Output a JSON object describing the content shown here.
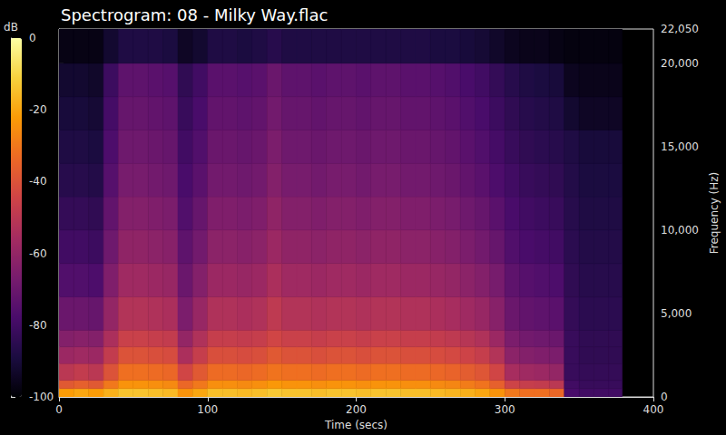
{
  "chart_data": {
    "type": "heatmap",
    "title": "Spectrogram: 08 - Milky Way.flac",
    "x_label": "Time (secs)",
    "y_label": "Frequency (Hz)",
    "xlim": [
      0,
      400
    ],
    "xticks": [
      0,
      100,
      200,
      300,
      400
    ],
    "ylim": [
      0,
      22050
    ],
    "yticks": [
      0,
      5000,
      10000,
      15000,
      20000
    ],
    "time_edges": [
      0,
      10,
      20,
      30,
      40,
      50,
      60,
      70,
      80,
      90,
      100,
      110,
      120,
      130,
      140,
      150,
      160,
      170,
      180,
      190,
      200,
      210,
      220,
      230,
      240,
      250,
      260,
      270,
      280,
      290,
      300,
      310,
      320,
      330,
      340,
      350,
      360,
      370,
      379
    ],
    "freq_edges": [
      0,
      500,
      1000,
      2000,
      3000,
      4000,
      6000,
      8000,
      10000,
      12000,
      14000,
      16000,
      18000,
      20000,
      22050
    ],
    "db": [
      [
        -22,
        -20,
        -22,
        -18,
        -14,
        -14,
        -15,
        -16,
        -24,
        -20,
        -15,
        -15,
        -16,
        -15,
        -13,
        -14,
        -14,
        -15,
        -14,
        -14,
        -15,
        -14,
        -14,
        -15,
        -15,
        -16,
        -17,
        -18,
        -20,
        -24,
        -30,
        -32,
        -32,
        -34,
        -78,
        -80,
        -80,
        -80
      ],
      [
        -38,
        -36,
        -38,
        -30,
        -24,
        -24,
        -25,
        -26,
        -34,
        -30,
        -25,
        -25,
        -26,
        -25,
        -23,
        -24,
        -24,
        -25,
        -24,
        -24,
        -25,
        -24,
        -24,
        -25,
        -25,
        -26,
        -27,
        -29,
        -31,
        -36,
        -45,
        -47,
        -48,
        -50,
        -80,
        -82,
        -82,
        -82
      ],
      [
        -50,
        -48,
        -50,
        -40,
        -32,
        -32,
        -33,
        -34,
        -44,
        -38,
        -33,
        -33,
        -34,
        -33,
        -31,
        -32,
        -32,
        -33,
        -32,
        -32,
        -33,
        -32,
        -32,
        -33,
        -33,
        -34,
        -35,
        -37,
        -39,
        -44,
        -55,
        -57,
        -58,
        -60,
        -82,
        -83,
        -83,
        -83
      ],
      [
        -58,
        -57,
        -58,
        -48,
        -40,
        -40,
        -41,
        -42,
        -54,
        -47,
        -41,
        -41,
        -42,
        -41,
        -38,
        -40,
        -40,
        -41,
        -40,
        -40,
        -41,
        -40,
        -40,
        -41,
        -41,
        -42,
        -43,
        -45,
        -47,
        -52,
        -62,
        -64,
        -65,
        -66,
        -82,
        -84,
        -84,
        -84
      ],
      [
        -64,
        -63,
        -64,
        -54,
        -46,
        -46,
        -47,
        -48,
        -60,
        -53,
        -47,
        -47,
        -48,
        -47,
        -44,
        -46,
        -46,
        -47,
        -46,
        -46,
        -47,
        -46,
        -46,
        -47,
        -47,
        -48,
        -49,
        -51,
        -53,
        -58,
        -66,
        -68,
        -69,
        -70,
        -82,
        -84,
        -84,
        -84
      ],
      [
        -70,
        -70,
        -71,
        -60,
        -52,
        -52,
        -53,
        -54,
        -66,
        -59,
        -53,
        -53,
        -54,
        -53,
        -49,
        -52,
        -52,
        -53,
        -52,
        -52,
        -53,
        -52,
        -52,
        -53,
        -53,
        -54,
        -55,
        -57,
        -59,
        -63,
        -70,
        -72,
        -73,
        -74,
        -83,
        -85,
        -85,
        -85
      ],
      [
        -76,
        -76,
        -77,
        -65,
        -57,
        -57,
        -58,
        -59,
        -70,
        -64,
        -58,
        -58,
        -59,
        -58,
        -54,
        -57,
        -57,
        -58,
        -57,
        -57,
        -58,
        -57,
        -57,
        -58,
        -58,
        -59,
        -60,
        -62,
        -64,
        -67,
        -73,
        -75,
        -76,
        -77,
        -84,
        -86,
        -86,
        -86
      ],
      [
        -80,
        -80,
        -81,
        -69,
        -61,
        -61,
        -62,
        -63,
        -73,
        -68,
        -62,
        -62,
        -63,
        -62,
        -58,
        -61,
        -61,
        -62,
        -61,
        -61,
        -62,
        -61,
        -61,
        -62,
        -62,
        -63,
        -64,
        -66,
        -68,
        -71,
        -76,
        -78,
        -79,
        -80,
        -85,
        -87,
        -87,
        -87
      ],
      [
        -83,
        -83,
        -84,
        -72,
        -64,
        -64,
        -65,
        -66,
        -76,
        -71,
        -65,
        -65,
        -66,
        -65,
        -61,
        -64,
        -64,
        -65,
        -64,
        -64,
        -65,
        -64,
        -64,
        -65,
        -65,
        -66,
        -67,
        -69,
        -71,
        -74,
        -78,
        -80,
        -81,
        -82,
        -86,
        -88,
        -88,
        -88
      ],
      [
        -86,
        -86,
        -87,
        -75,
        -67,
        -67,
        -68,
        -69,
        -78,
        -74,
        -68,
        -68,
        -69,
        -68,
        -64,
        -67,
        -67,
        -68,
        -67,
        -67,
        -68,
        -67,
        -67,
        -68,
        -68,
        -69,
        -70,
        -72,
        -74,
        -77,
        -80,
        -82,
        -83,
        -84,
        -87,
        -89,
        -89,
        -89
      ],
      [
        -88,
        -88,
        -89,
        -77,
        -69,
        -69,
        -70,
        -71,
        -80,
        -76,
        -70,
        -70,
        -71,
        -70,
        -66,
        -69,
        -69,
        -70,
        -69,
        -69,
        -70,
        -69,
        -69,
        -70,
        -70,
        -71,
        -72,
        -74,
        -76,
        -79,
        -82,
        -84,
        -85,
        -86,
        -88,
        -90,
        -90,
        -90
      ],
      [
        -90,
        -90,
        -91,
        -79,
        -71,
        -71,
        -72,
        -73,
        -82,
        -78,
        -72,
        -72,
        -73,
        -72,
        -68,
        -71,
        -71,
        -72,
        -71,
        -71,
        -72,
        -71,
        -71,
        -72,
        -72,
        -73,
        -74,
        -76,
        -78,
        -81,
        -84,
        -86,
        -87,
        -88,
        -92,
        -94,
        -94,
        -94
      ],
      [
        -92,
        -92,
        -93,
        -81,
        -73,
        -73,
        -74,
        -75,
        -84,
        -80,
        -74,
        -74,
        -75,
        -74,
        -70,
        -73,
        -73,
        -74,
        -73,
        -73,
        -74,
        -73,
        -73,
        -74,
        -74,
        -75,
        -76,
        -78,
        -80,
        -83,
        -86,
        -88,
        -89,
        -90,
        -95,
        -96,
        -96,
        -96
      ],
      [
        -97,
        -97,
        -97,
        -92,
        -88,
        -88,
        -88,
        -89,
        -94,
        -92,
        -88,
        -88,
        -89,
        -88,
        -86,
        -88,
        -88,
        -88,
        -88,
        -88,
        -88,
        -88,
        -88,
        -88,
        -88,
        -89,
        -89,
        -90,
        -91,
        -93,
        -95,
        -96,
        -96,
        -97,
        -98,
        -98,
        -98,
        -98
      ]
    ],
    "colorbar": {
      "label": "dB",
      "range": [
        -100,
        0
      ],
      "ticks": [
        -100,
        -80,
        -60,
        -40,
        -20,
        0
      ]
    }
  }
}
